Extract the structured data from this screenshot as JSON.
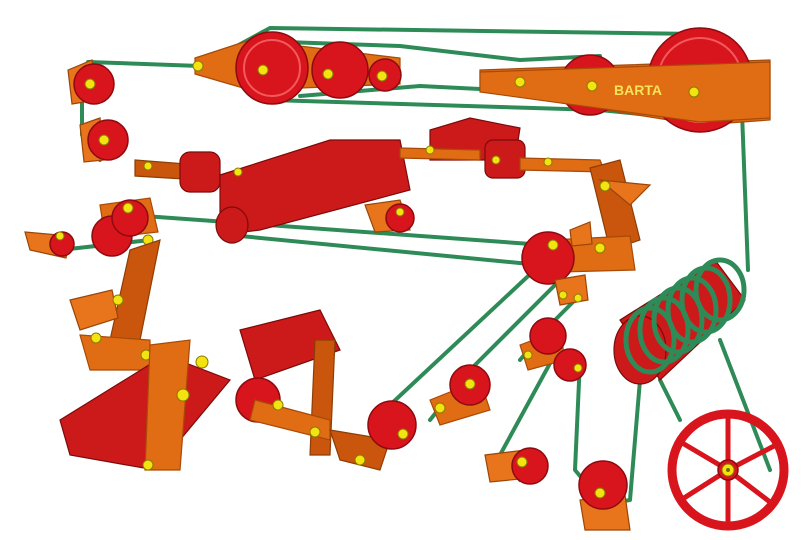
{
  "brand": {
    "label": "BARTA"
  },
  "colors": {
    "belt": "#2e8b57",
    "link_orange": "#e06c14",
    "wheel_red": "#d8141c",
    "pin_yellow": "#f2e311",
    "background": "#ffffff"
  },
  "icons": [
    "pulley-wheel-icon",
    "spoked-wheel-icon",
    "coil-spring-icon",
    "bracket-icon"
  ]
}
